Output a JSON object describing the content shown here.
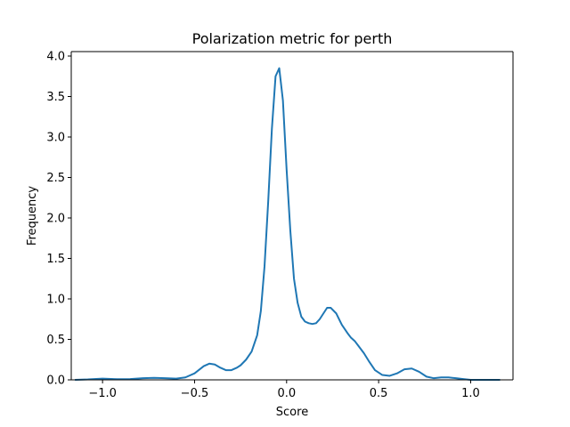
{
  "chart_data": {
    "type": "line",
    "title": "Polarization metric for perth",
    "xlabel": "Score",
    "ylabel": "Frequency",
    "xlim": [
      -1.17,
      1.23
    ],
    "ylim": [
      0.0,
      4.0
    ],
    "xticks": [
      -1.0,
      -0.5,
      0.0,
      0.5,
      1.0
    ],
    "xtick_labels": [
      "−1.0",
      "−0.5",
      "0.0",
      "0.5",
      "1.0"
    ],
    "yticks": [
      0.0,
      0.5,
      1.0,
      1.5,
      2.0,
      2.5,
      3.0,
      3.5,
      4.0
    ],
    "ytick_labels": [
      "0.0",
      "0.5",
      "1.0",
      "1.5",
      "2.0",
      "2.5",
      "3.0",
      "3.5",
      "4.0"
    ],
    "grid": false,
    "series": [
      {
        "color": "#1f77b4",
        "x": [
          -1.15,
          -1.08,
          -1.0,
          -0.92,
          -0.85,
          -0.78,
          -0.72,
          -0.66,
          -0.6,
          -0.55,
          -0.5,
          -0.45,
          -0.42,
          -0.39,
          -0.36,
          -0.33,
          -0.3,
          -0.27,
          -0.25,
          -0.22,
          -0.19,
          -0.16,
          -0.14,
          -0.12,
          -0.1,
          -0.08,
          -0.06,
          -0.04,
          -0.02,
          0.0,
          0.02,
          0.04,
          0.06,
          0.08,
          0.1,
          0.12,
          0.14,
          0.16,
          0.18,
          0.2,
          0.22,
          0.24,
          0.27,
          0.3,
          0.33,
          0.35,
          0.37,
          0.39,
          0.42,
          0.45,
          0.48,
          0.52,
          0.56,
          0.6,
          0.64,
          0.68,
          0.72,
          0.76,
          0.8,
          0.84,
          0.88,
          0.92,
          0.96,
          1.0,
          1.04,
          1.08,
          1.12,
          1.16
        ],
        "y": [
          0.0,
          0.005,
          0.015,
          0.008,
          0.01,
          0.02,
          0.025,
          0.02,
          0.015,
          0.03,
          0.08,
          0.17,
          0.2,
          0.19,
          0.15,
          0.12,
          0.12,
          0.15,
          0.18,
          0.25,
          0.35,
          0.55,
          0.85,
          1.4,
          2.2,
          3.1,
          3.75,
          3.85,
          3.45,
          2.6,
          1.85,
          1.25,
          0.95,
          0.78,
          0.72,
          0.7,
          0.69,
          0.7,
          0.75,
          0.82,
          0.89,
          0.89,
          0.82,
          0.68,
          0.58,
          0.52,
          0.48,
          0.42,
          0.33,
          0.22,
          0.12,
          0.06,
          0.05,
          0.08,
          0.13,
          0.14,
          0.1,
          0.04,
          0.02,
          0.03,
          0.03,
          0.02,
          0.01,
          0.0,
          0.0,
          0.0,
          0.0,
          0.0
        ]
      }
    ]
  }
}
